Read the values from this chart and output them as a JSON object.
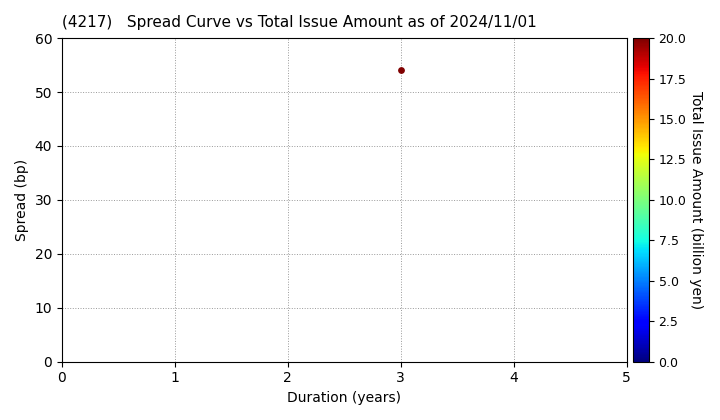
{
  "title": "(4217)   Spread Curve vs Total Issue Amount as of 2024/11/01",
  "xlabel": "Duration (years)",
  "ylabel": "Spread (bp)",
  "colorbar_label": "Total Issue Amount (billion yen)",
  "xlim": [
    0,
    5
  ],
  "ylim": [
    0,
    60
  ],
  "xticks": [
    0,
    1,
    2,
    3,
    4,
    5
  ],
  "yticks": [
    0,
    10,
    20,
    30,
    40,
    50,
    60
  ],
  "colorbar_ticks": [
    0.0,
    2.5,
    5.0,
    7.5,
    10.0,
    12.5,
    15.0,
    17.5,
    20.0
  ],
  "colorbar_vmin": 0.0,
  "colorbar_vmax": 20.0,
  "scatter_x": [
    3.0
  ],
  "scatter_y": [
    54.0
  ],
  "scatter_values": [
    20.0
  ],
  "scatter_size": 15,
  "background_color": "#ffffff",
  "grid_color": "#999999",
  "colormap": "jet",
  "title_fontsize": 11,
  "axis_fontsize": 10,
  "tick_fontsize": 10,
  "colorbar_tick_fontsize": 9,
  "colorbar_label_fontsize": 10
}
